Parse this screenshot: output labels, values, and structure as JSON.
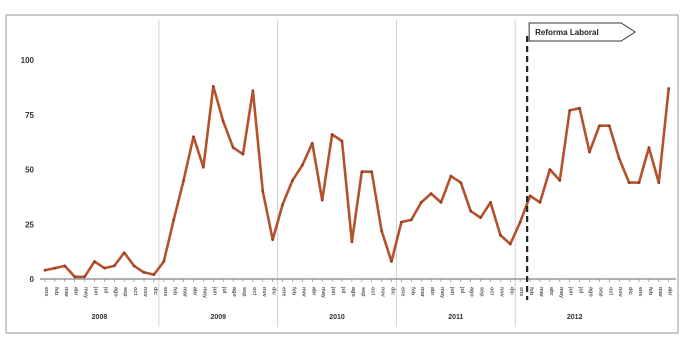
{
  "chart_data": {
    "type": "line",
    "title": "",
    "xlabel": "",
    "ylabel": "",
    "ylim": [
      0,
      100
    ],
    "yticks": [
      0,
      25,
      50,
      75,
      100
    ],
    "grid": "vertical lines at year boundaries",
    "legend": "none",
    "line_color": "#b5522c",
    "years": [
      "2008",
      "2009",
      "2010",
      "2011",
      "2012"
    ],
    "month_labels": [
      "ene",
      "feb",
      "mar",
      "abr",
      "may",
      "jun",
      "jul",
      "ago",
      "sep",
      "oct",
      "nov",
      "dic"
    ],
    "annotation": {
      "label": "Reforma Laboral",
      "at_index": 49,
      "style": "dashed vertical line with flag label"
    },
    "series": [
      {
        "values": [
          4,
          5,
          6,
          1,
          1,
          8,
          5,
          6,
          12,
          6,
          3,
          2,
          8,
          27,
          45,
          65,
          51,
          88,
          72,
          60,
          57,
          86,
          40,
          18,
          34,
          45,
          52,
          62,
          36,
          66,
          63,
          17,
          49,
          49,
          22,
          8,
          26,
          27,
          35,
          39,
          35,
          47,
          44,
          31,
          28,
          35,
          20,
          16,
          26,
          38,
          35,
          50,
          45,
          77,
          78,
          58,
          70,
          70,
          55,
          44,
          44,
          60,
          44,
          87
        ]
      }
    ]
  }
}
